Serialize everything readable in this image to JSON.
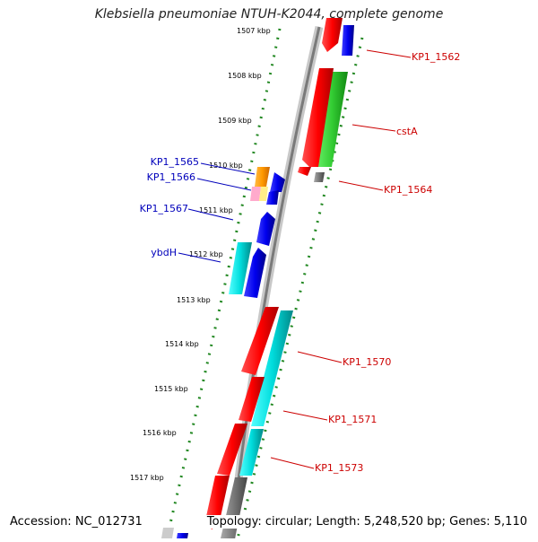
{
  "title": "Klebsiella pneumoniae NTUH-K2044, complete genome",
  "footer": {
    "accession": "Accession: NC_012731",
    "topology": "Topology: circular; Length: 5,248,520 bp; Genes: 5,110"
  },
  "ruler_labels": [
    "1507 kbp",
    "1508 kbp",
    "1509 kbp",
    "1510 kbp",
    "1511 kbp",
    "1512 kbp",
    "1513 kbp",
    "1514 kbp",
    "1515 kbp",
    "1516 kbp",
    "1517 kbp"
  ],
  "gene_labels_left": [
    "KP1_1565",
    "KP1_1566",
    "KP1_1567",
    "ybdH"
  ],
  "gene_labels_right": [
    "KP1_1562",
    "cstA",
    "KP1_1564",
    "KP1_1570",
    "KP1_1571",
    "KP1_1573"
  ],
  "colors": {
    "red": "#ff0000",
    "blue": "#0000ee",
    "green": "#33cc33",
    "cyan": "#00dddd",
    "orange": "#ff9900",
    "gray": "#777777",
    "label_left": "#0000bb",
    "label_right": "#cc0000",
    "ruler_dots": "#228822"
  }
}
